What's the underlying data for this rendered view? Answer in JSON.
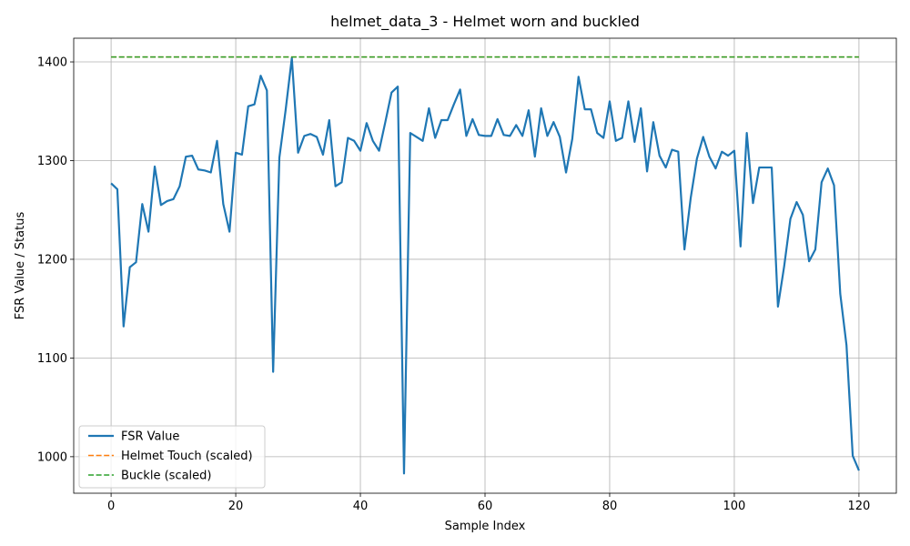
{
  "chart_data": {
    "type": "line",
    "title": "helmet_data_3 - Helmet worn and buckled",
    "xlabel": "Sample Index",
    "ylabel": "FSR Value / Status",
    "xlim": [
      -6,
      126
    ],
    "ylim": [
      963,
      1424
    ],
    "xticks": [
      0,
      20,
      40,
      60,
      80,
      100,
      120
    ],
    "yticks": [
      1000,
      1100,
      1200,
      1300,
      1400
    ],
    "grid": true,
    "legend_position": "lower-left",
    "series": [
      {
        "name": "FSR Value",
        "color": "#1f77b4",
        "style": "solid",
        "x": [
          0,
          1,
          2,
          3,
          4,
          5,
          6,
          7,
          8,
          9,
          10,
          11,
          12,
          13,
          14,
          15,
          16,
          17,
          18,
          19,
          20,
          21,
          22,
          23,
          24,
          25,
          26,
          27,
          28,
          29,
          30,
          31,
          32,
          33,
          34,
          35,
          36,
          37,
          38,
          39,
          40,
          41,
          42,
          43,
          44,
          45,
          46,
          47,
          48,
          49,
          50,
          51,
          52,
          53,
          54,
          55,
          56,
          57,
          58,
          59,
          60,
          61,
          62,
          63,
          64,
          65,
          66,
          67,
          68,
          69,
          70,
          71,
          72,
          73,
          74,
          75,
          76,
          77,
          78,
          79,
          80,
          81,
          82,
          83,
          84,
          85,
          86,
          87,
          88,
          89,
          90,
          91,
          92,
          93,
          94,
          95,
          96,
          97,
          98,
          99,
          100,
          101,
          102,
          103,
          104,
          105,
          106,
          107,
          108,
          109,
          110,
          111,
          112,
          113,
          114,
          115,
          116,
          117,
          118,
          119,
          120
        ],
        "values": [
          1277,
          1271,
          1132,
          1192,
          1197,
          1256,
          1228,
          1294,
          1255,
          1259,
          1261,
          1274,
          1304,
          1305,
          1291,
          1290,
          1288,
          1320,
          1256,
          1228,
          1308,
          1306,
          1355,
          1357,
          1386,
          1371,
          1086,
          1303,
          1351,
          1404,
          1308,
          1325,
          1327,
          1324,
          1306,
          1341,
          1274,
          1278,
          1323,
          1320,
          1310,
          1338,
          1320,
          1310,
          1339,
          1369,
          1375,
          983,
          1328,
          1324,
          1320,
          1353,
          1323,
          1341,
          1341,
          1357,
          1372,
          1325,
          1342,
          1326,
          1325,
          1325,
          1342,
          1326,
          1325,
          1336,
          1325,
          1351,
          1304,
          1353,
          1325,
          1339,
          1324,
          1288,
          1322,
          1385,
          1352,
          1352,
          1328,
          1323,
          1360,
          1320,
          1323,
          1360,
          1319,
          1353,
          1289,
          1339,
          1305,
          1293,
          1311,
          1309,
          1210,
          1262,
          1302,
          1324,
          1304,
          1292,
          1309,
          1305,
          1310,
          1213,
          1328,
          1257,
          1293,
          1293,
          1293,
          1152,
          1193,
          1241,
          1258,
          1245,
          1198,
          1210,
          1278,
          1292,
          1275,
          1165,
          1113,
          1001,
          986
        ]
      },
      {
        "name": "Helmet Touch (scaled)",
        "color": "#ff7f0e",
        "style": "dashed",
        "x": [
          0,
          120
        ],
        "values": [
          1405,
          1405
        ]
      },
      {
        "name": "Buckle (scaled)",
        "color": "#2ca02c",
        "style": "dashed",
        "x": [
          0,
          120
        ],
        "values": [
          1405,
          1405
        ]
      }
    ]
  }
}
